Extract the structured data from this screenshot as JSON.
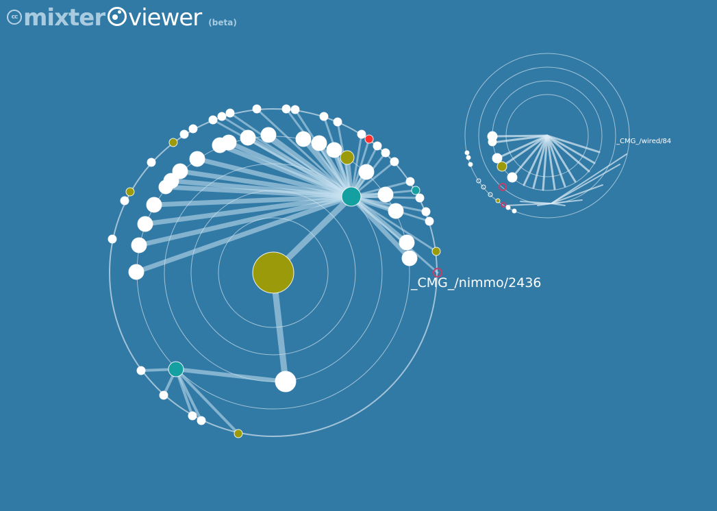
{
  "app": {
    "logo_cc": "cc",
    "logo_word1": "mixter",
    "logo_word2": "viewer",
    "logo_beta": "(beta)"
  },
  "graph": {
    "primary_label": "_CMG_/nimmo/2436",
    "secondary_label": "_CMG_/wired/84"
  },
  "colors": {
    "background": "#327aa6",
    "node_default": "#ffffff",
    "node_root": "#9a9a0a",
    "node_teal": "#14a0a0",
    "node_olive": "#9a9a0a",
    "node_red": "#ff3030",
    "node_hollow": "#c0406a"
  }
}
